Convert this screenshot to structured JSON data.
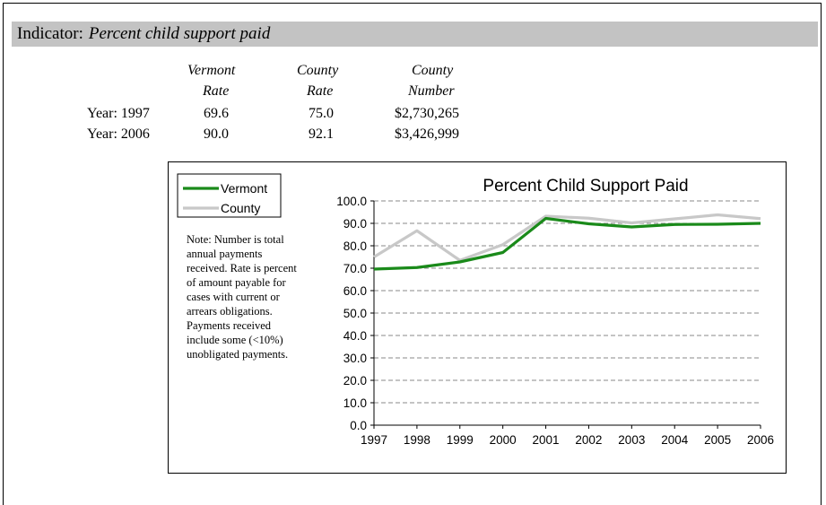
{
  "indicator": {
    "label": "Indicator:",
    "value": "Percent child support paid"
  },
  "summary_table": {
    "headers": [
      {
        "line1": "Vermont",
        "line2": "Rate"
      },
      {
        "line1": "County",
        "line2": "Rate"
      },
      {
        "line1": "County",
        "line2": "Number"
      }
    ],
    "rows": [
      {
        "label": "Year: 1997",
        "vermont_rate": "69.6",
        "county_rate": "75.0",
        "county_number": "$2,730,265"
      },
      {
        "label": "Year: 2006",
        "vermont_rate": "90.0",
        "county_rate": "92.1",
        "county_number": "$3,426,999"
      }
    ]
  },
  "note_lines": [
    "Note: Number is total",
    "annual payments",
    "received.  Rate is percent",
    "of amount payable for",
    "cases with current or",
    "arrears obligations.",
    "Payments received",
    "include some (<10%)",
    "unobligated payments."
  ],
  "chart_data": {
    "type": "line",
    "title": "Percent Child Support Paid",
    "xlabel": "",
    "ylabel": "",
    "x": [
      "1997",
      "1998",
      "1999",
      "2000",
      "2001",
      "2002",
      "2003",
      "2004",
      "2005",
      "2006"
    ],
    "ylim": [
      0,
      100
    ],
    "yticks": [
      "0.0",
      "10.0",
      "20.0",
      "30.0",
      "40.0",
      "50.0",
      "60.0",
      "70.0",
      "80.0",
      "90.0",
      "100.0"
    ],
    "grid": "horizontal dashed",
    "legend_position": "top-left",
    "series": [
      {
        "name": "Vermont",
        "color": "#1a8a1a",
        "values": [
          69.6,
          70.3,
          72.8,
          77.0,
          92.2,
          89.8,
          88.4,
          89.5,
          89.6,
          90.0
        ]
      },
      {
        "name": "County",
        "color": "#c8c8c8",
        "values": [
          75.0,
          86.7,
          73.5,
          80.5,
          93.2,
          92.3,
          90.2,
          92.0,
          93.8,
          92.1
        ]
      }
    ]
  }
}
